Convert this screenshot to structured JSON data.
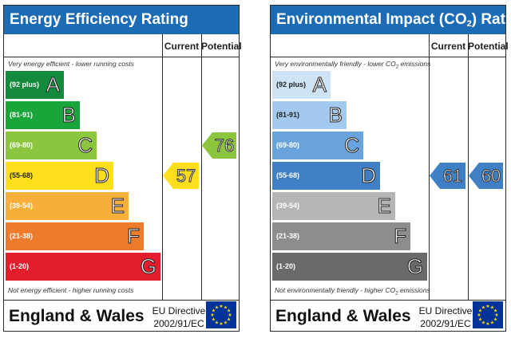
{
  "chart_data": [
    {
      "type": "bar",
      "title": "Energy Efficiency Rating",
      "columns": [
        "Current",
        "Potential"
      ],
      "top_note": "Very energy efficient - lower running costs",
      "bottom_note": "Not energy efficient - higher running costs",
      "bands": [
        {
          "letter": "A",
          "range": "(92 plus)",
          "color": "#138a3c"
        },
        {
          "letter": "B",
          "range": "(81-91)",
          "color": "#1aa53a"
        },
        {
          "letter": "C",
          "range": "(69-80)",
          "color": "#8cc63e"
        },
        {
          "letter": "D",
          "range": "(55-68)",
          "color": "#ffdf1b"
        },
        {
          "letter": "E",
          "range": "(39-54)",
          "color": "#f7ae3a"
        },
        {
          "letter": "F",
          "range": "(21-38)",
          "color": "#ee7b2c"
        },
        {
          "letter": "G",
          "range": "(1-20)",
          "color": "#e21d2d"
        }
      ],
      "current": {
        "value": "57",
        "band": "D",
        "color": "#ffdf1b"
      },
      "potential": {
        "value": "76",
        "band": "C",
        "color": "#8cc63e"
      },
      "footer": {
        "region": "England & Wales",
        "directive_line1": "EU Directive",
        "directive_line2": "2002/91/EC"
      }
    },
    {
      "type": "bar",
      "title_main": "Environmental Impact (CO",
      "title_sub": "2",
      "title_end": ") Rating",
      "columns": [
        "Current",
        "Potential"
      ],
      "top_note_main": "Very environmentally friendly - lower CO",
      "top_note_sub": "2",
      "top_note_end": " emissions",
      "bottom_note_main": "Not environmentally friendly - higher CO",
      "bottom_note_sub": "2",
      "bottom_note_end": " emissions",
      "bands": [
        {
          "letter": "A",
          "range": "(92 plus)",
          "color": "#cfe3f6"
        },
        {
          "letter": "B",
          "range": "(81-91)",
          "color": "#a3c9ee"
        },
        {
          "letter": "C",
          "range": "(69-80)",
          "color": "#6aa3dc"
        },
        {
          "letter": "D",
          "range": "(55-68)",
          "color": "#3f7fc6"
        },
        {
          "letter": "E",
          "range": "(39-54)",
          "color": "#b5b5b5"
        },
        {
          "letter": "F",
          "range": "(21-38)",
          "color": "#8d8d8d"
        },
        {
          "letter": "G",
          "range": "(1-20)",
          "color": "#6a6a6a"
        }
      ],
      "current": {
        "value": "61",
        "band": "D",
        "color": "#3f7fc6"
      },
      "potential": {
        "value": "60",
        "band": "D",
        "color": "#3f7fc6"
      },
      "footer": {
        "region": "England & Wales",
        "directive_line1": "EU Directive",
        "directive_line2": "2002/91/EC"
      }
    }
  ]
}
